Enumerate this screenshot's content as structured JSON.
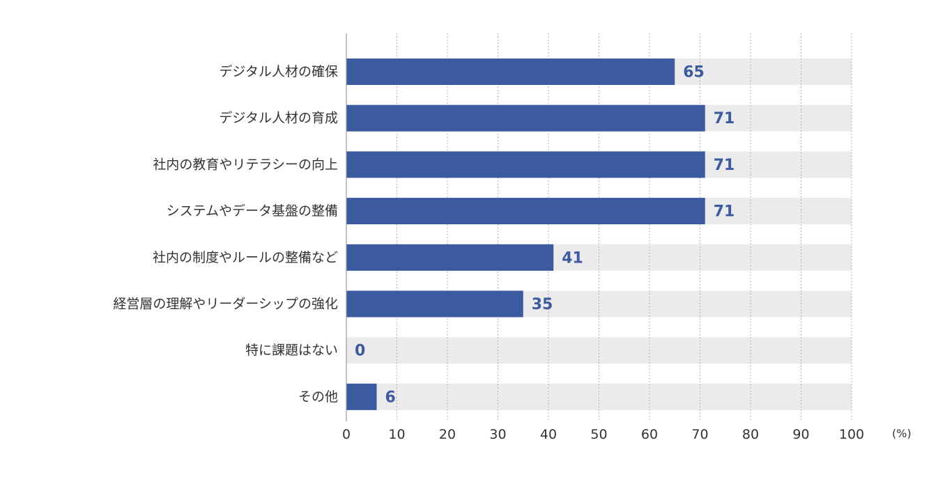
{
  "chart_data": {
    "type": "bar",
    "orientation": "horizontal",
    "categories": [
      "デジタル人材の確保",
      "デジタル人材の育成",
      "社内の教育やリテラシーの向上",
      "システムやデータ基盤の整備",
      "社内の制度やルールの整備など",
      "経営層の理解やリーダーシップの強化",
      "特に課題はない",
      "その他"
    ],
    "values": [
      65,
      71,
      71,
      71,
      41,
      35,
      0,
      6
    ],
    "xlim": [
      0,
      100
    ],
    "xticks": [
      0,
      10,
      20,
      30,
      40,
      50,
      60,
      70,
      80,
      90,
      100
    ],
    "unit": "(%)",
    "grid": true,
    "colors": {
      "bar": "#3b5aa0",
      "track": "#ebebeb",
      "label": "#3b5aa0",
      "text": "#333333"
    }
  }
}
